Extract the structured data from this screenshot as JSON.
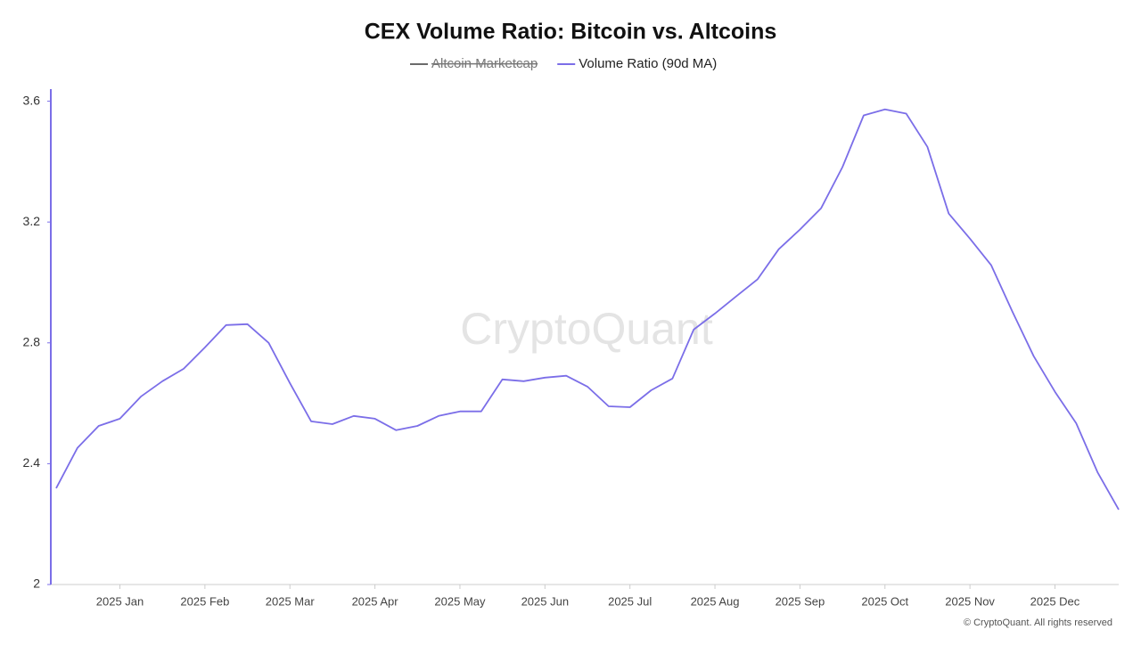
{
  "chart_data": {
    "type": "line",
    "title": "CEX Volume Ratio: Bitcoin vs. Altcoins",
    "watermark": "CryptoQuant",
    "footer": "© CryptoQuant. All rights reserved",
    "categories": [
      null,
      null,
      null,
      "2025 Jan",
      null,
      null,
      null,
      "2025 Feb",
      null,
      null,
      null,
      "2025 Mar",
      null,
      null,
      null,
      "2025 Apr",
      null,
      null,
      null,
      "2025 May",
      null,
      null,
      null,
      "2025 Jun",
      null,
      null,
      null,
      "2025 Jul",
      null,
      null,
      null,
      "2025 Aug",
      null,
      null,
      null,
      "2025 Sep",
      null,
      null,
      null,
      "2025 Oct",
      null,
      null,
      null,
      "2025 Nov",
      null,
      null,
      null,
      "2025 Dec",
      null,
      null,
      null
    ],
    "series": [
      {
        "name": "Altcoin Marketcap",
        "color": "#6b6b6b",
        "hidden": true,
        "values": [
          null,
          null,
          null,
          null,
          null,
          null,
          null,
          null,
          null,
          null,
          null,
          null,
          null,
          null,
          null,
          null,
          null,
          null,
          null,
          null,
          null,
          null,
          null,
          null,
          null,
          null,
          null,
          null,
          null,
          null,
          null,
          null,
          null,
          null,
          null,
          null,
          null,
          null,
          null,
          null,
          null,
          null,
          null,
          null,
          null,
          null,
          null,
          null,
          null,
          null,
          null
        ]
      },
      {
        "name": "Volume Ratio (90d MA)",
        "color": "#7b6ee8",
        "values": [
          2.319,
          2.452,
          2.525,
          2.549,
          2.623,
          2.673,
          2.714,
          2.785,
          2.859,
          2.862,
          2.8,
          2.667,
          2.54,
          2.531,
          2.558,
          2.549,
          2.511,
          2.525,
          2.558,
          2.573,
          2.573,
          2.679,
          2.673,
          2.685,
          2.691,
          2.655,
          2.59,
          2.587,
          2.643,
          2.682,
          2.844,
          2.897,
          2.954,
          3.01,
          3.11,
          3.175,
          3.246,
          3.382,
          3.553,
          3.573,
          3.559,
          3.449,
          3.228,
          3.145,
          3.057,
          2.903,
          2.756,
          2.638,
          2.534,
          2.372,
          2.248
        ]
      }
    ],
    "ylim": [
      2,
      3.64
    ],
    "yticks": [
      2,
      2.4,
      2.8,
      3.2,
      3.6
    ],
    "grid": false
  }
}
